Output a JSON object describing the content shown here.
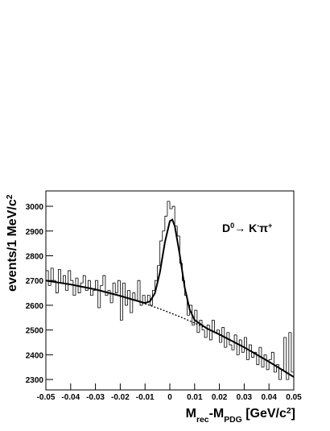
{
  "chart_data": {
    "type": "histogram",
    "bins": [
      -0.05,
      -0.049,
      -0.048,
      -0.047,
      -0.046,
      -0.045,
      -0.044,
      -0.043,
      -0.042,
      -0.041,
      -0.04,
      -0.039,
      -0.038,
      -0.037,
      -0.036,
      -0.035,
      -0.034,
      -0.033,
      -0.032,
      -0.031,
      -0.03,
      -0.029,
      -0.028,
      -0.027,
      -0.026,
      -0.025,
      -0.024,
      -0.023,
      -0.022,
      -0.021,
      -0.02,
      -0.019,
      -0.018,
      -0.017,
      -0.016,
      -0.015,
      -0.014,
      -0.013,
      -0.012,
      -0.011,
      -0.01,
      -0.009,
      -0.008,
      -0.007,
      -0.006,
      -0.005,
      -0.004,
      -0.003,
      -0.002,
      -0.001,
      0,
      0.001,
      0.002,
      0.003,
      0.004,
      0.005,
      0.006,
      0.007,
      0.008,
      0.009,
      0.01,
      0.011,
      0.012,
      0.013,
      0.014,
      0.015,
      0.016,
      0.017,
      0.018,
      0.019,
      0.02,
      0.021,
      0.022,
      0.023,
      0.024,
      0.025,
      0.026,
      0.027,
      0.028,
      0.029,
      0.03,
      0.031,
      0.032,
      0.033,
      0.034,
      0.035,
      0.036,
      0.037,
      0.038,
      0.039,
      0.04,
      0.041,
      0.042,
      0.043,
      0.044,
      0.045,
      0.046,
      0.047,
      0.048,
      0.049,
      0.05
    ],
    "values": [
      2740,
      2680,
      2750,
      2700,
      2650,
      2745,
      2690,
      2720,
      2660,
      2740,
      2700,
      2640,
      2710,
      2650,
      2690,
      2720,
      2660,
      2700,
      2640,
      2660,
      2700,
      2590,
      2680,
      2720,
      2640,
      2660,
      2610,
      2690,
      2650,
      2700,
      2540,
      2690,
      2600,
      2660,
      2570,
      2650,
      2620,
      2700,
      2600,
      2640,
      2610,
      2640,
      2600,
      2660,
      2700,
      2760,
      2860,
      2900,
      2960,
      3020,
      2990,
      3000,
      2920,
      2880,
      2770,
      2700,
      2640,
      2560,
      2600,
      2520,
      2580,
      2490,
      2540,
      2500,
      2470,
      2520,
      2460,
      2540,
      2490,
      2500,
      2450,
      2510,
      2430,
      2490,
      2440,
      2420,
      2480,
      2400,
      2460,
      2410,
      2470,
      2380,
      2440,
      2390,
      2410,
      2360,
      2430,
      2350,
      2400,
      2340,
      2380,
      2410,
      2330,
      2360,
      2300,
      2340,
      2470,
      2300,
      2490,
      2330
    ],
    "color": "#000000",
    "fit_curves": [
      {
        "style": "solid",
        "x": [
          -0.05,
          -0.04,
          -0.03,
          -0.02,
          -0.015,
          -0.01,
          -0.008,
          -0.006,
          -0.004,
          -0.002,
          0,
          0.001,
          0.002,
          0.004,
          0.006,
          0.008,
          0.01,
          0.015,
          0.02,
          0.03,
          0.04,
          0.05
        ],
        "y": [
          2700,
          2684,
          2664,
          2638,
          2623,
          2609,
          2616,
          2649,
          2733,
          2854,
          2940,
          2946,
          2920,
          2804,
          2672,
          2583,
          2540,
          2506,
          2482,
          2430,
          2372,
          2310
        ]
      },
      {
        "style": "dashed",
        "x": [
          -0.015,
          -0.01,
          -0.005,
          0,
          0.005,
          0.01,
          0.015
        ],
        "y": [
          2623,
          2606,
          2589,
          2570,
          2550,
          2528,
          2506
        ]
      }
    ],
    "xlim": [
      -0.05,
      0.05
    ],
    "xticks": [
      -0.05,
      -0.04,
      -0.03,
      -0.02,
      -0.01,
      0,
      0.01,
      0.02,
      0.03,
      0.04,
      0.05
    ],
    "ylim": [
      2258,
      3062
    ],
    "yticks": [
      2300,
      2400,
      2500,
      2600,
      2700,
      2800,
      2900,
      3000
    ],
    "ylabel": [
      {
        "text": "events/1 MeV/c",
        "style": "normal"
      },
      {
        "text": "2",
        "style": "sup"
      }
    ],
    "xlabel": [
      {
        "text": "M",
        "style": "normal"
      },
      {
        "text": "rec",
        "style": "sub"
      },
      {
        "text": "-M",
        "style": "normal"
      },
      {
        "text": "PDG",
        "style": "sub"
      },
      {
        "text": " [GeV/c",
        "style": "normal"
      },
      {
        "text": "2",
        "style": "sup"
      },
      {
        "text": "]",
        "style": "normal"
      }
    ],
    "annotation": [
      {
        "text": "D",
        "style": "normal"
      },
      {
        "text": "0",
        "style": "sup"
      },
      {
        "text": "→ K",
        "style": "normal"
      },
      {
        "text": "-",
        "style": "sup"
      },
      {
        "text": "π",
        "style": "normal"
      },
      {
        "text": "+",
        "style": "sup"
      }
    ]
  }
}
